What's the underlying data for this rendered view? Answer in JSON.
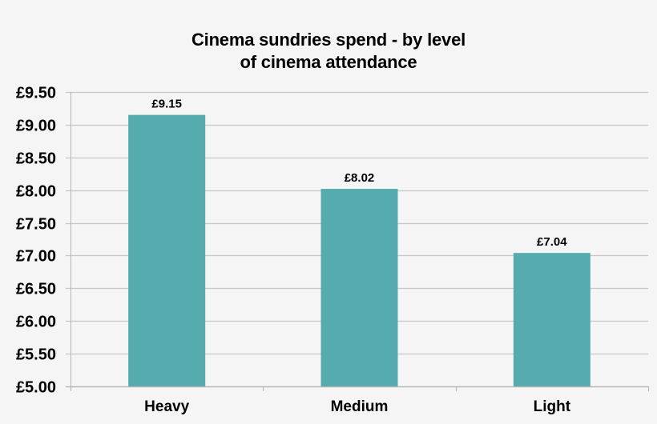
{
  "chart": {
    "title_line1": "Cinema sundries spend - by level",
    "title_line2": "of cinema attendance"
  },
  "colors": {
    "background": "#f5f5f5",
    "bar": "#56abae",
    "gridline": "#c8c8c8",
    "axis": "#b4b4b4",
    "text": "#000000"
  },
  "chart_data": {
    "type": "bar",
    "title": "Cinema sundries spend - by level of cinema attendance",
    "categories": [
      "Heavy",
      "Medium",
      "Light"
    ],
    "values": [
      9.15,
      8.02,
      7.04
    ],
    "data_labels": [
      "£9.15",
      "£8.02",
      "£7.04"
    ],
    "xlabel": "",
    "ylabel": "",
    "ylim": [
      5.0,
      9.5
    ],
    "yticks": [
      5.0,
      5.5,
      6.0,
      6.5,
      7.0,
      7.5,
      8.0,
      8.5,
      9.0,
      9.5
    ],
    "ytick_labels": [
      "£5.00",
      "£5.50",
      "£6.00",
      "£6.50",
      "£7.00",
      "£7.50",
      "£8.00",
      "£8.50",
      "£9.00",
      "£9.50"
    ],
    "grid": true,
    "legend": null
  }
}
